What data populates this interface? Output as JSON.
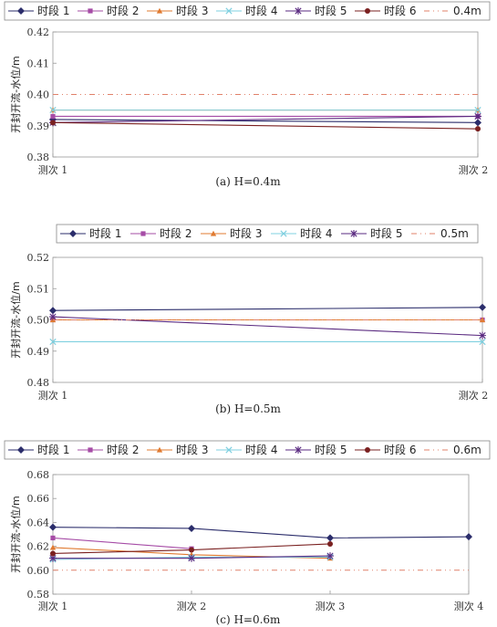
{
  "chart_data": [
    {
      "type": "line",
      "caption": "(a) H=0.4m",
      "ylabel": "开封开流-水位/m",
      "categories": [
        "测次 1",
        "测次 2"
      ],
      "ylim": [
        0.38,
        0.42
      ],
      "yticks": [
        "0.38",
        "0.39",
        "0.40",
        "0.41",
        "0.42"
      ],
      "series": [
        {
          "name": "时段 1",
          "color": "#2b2d6b",
          "marker": "diamond",
          "dash": "",
          "values": [
            0.392,
            0.391
          ]
        },
        {
          "name": "时段 2",
          "color": "#a64ca6",
          "marker": "square",
          "dash": "",
          "values": [
            0.393,
            0.393
          ]
        },
        {
          "name": "时段 3",
          "color": "#e07b32",
          "marker": "triangle",
          "dash": "",
          "values": [
            0.395,
            0.395
          ]
        },
        {
          "name": "时段 4",
          "color": "#7fd0e0",
          "marker": "x",
          "dash": "",
          "values": [
            0.395,
            0.395
          ]
        },
        {
          "name": "时段 5",
          "color": "#5a2a80",
          "marker": "star",
          "dash": "",
          "values": [
            0.391,
            0.393
          ]
        },
        {
          "name": "时段 6",
          "color": "#7a2020",
          "marker": "circle",
          "dash": "",
          "values": [
            0.391,
            0.389
          ]
        },
        {
          "name": "0.4m",
          "color": "#e0806a",
          "marker": "none",
          "dash": "6 4 1 4 1 4",
          "values": [
            0.4,
            0.4
          ]
        }
      ]
    },
    {
      "type": "line",
      "caption": "(b) H=0.5m",
      "ylabel": "开封开流-水位/m",
      "categories": [
        "测次 1",
        "测次 2"
      ],
      "ylim": [
        0.48,
        0.52
      ],
      "yticks": [
        "0.48",
        "0.49",
        "0.50",
        "0.51",
        "0.52"
      ],
      "series": [
        {
          "name": "时段 1",
          "color": "#2b2d6b",
          "marker": "diamond",
          "dash": "",
          "values": [
            0.503,
            0.504
          ]
        },
        {
          "name": "时段 2",
          "color": "#a64ca6",
          "marker": "square",
          "dash": "",
          "values": [
            0.5,
            0.5
          ]
        },
        {
          "name": "时段 3",
          "color": "#e07b32",
          "marker": "triangle",
          "dash": "",
          "values": [
            0.5,
            0.5
          ]
        },
        {
          "name": "时段 4",
          "color": "#7fd0e0",
          "marker": "x",
          "dash": "",
          "values": [
            0.493,
            0.493
          ]
        },
        {
          "name": "时段 5",
          "color": "#5a2a80",
          "marker": "star",
          "dash": "",
          "values": [
            0.501,
            0.495
          ]
        },
        {
          "name": "0.5m",
          "color": "#e0806a",
          "marker": "none",
          "dash": "6 4 1 4 1 4",
          "values": [
            0.5,
            0.5
          ]
        }
      ]
    },
    {
      "type": "line",
      "caption": "(c) H=0.6m",
      "ylabel": "开封开流-水位/m",
      "categories": [
        "测次 1",
        "测次 2",
        "测次 3",
        "测次 4"
      ],
      "ylim": [
        0.58,
        0.68
      ],
      "yticks": [
        "0.58",
        "0.60",
        "0.62",
        "0.64",
        "0.66",
        "0.68"
      ],
      "series": [
        {
          "name": "时段 1",
          "color": "#2b2d6b",
          "marker": "diamond",
          "dash": "",
          "values": [
            0.636,
            0.635,
            0.627,
            0.628
          ]
        },
        {
          "name": "时段 2",
          "color": "#a64ca6",
          "marker": "square",
          "dash": "",
          "values": [
            0.627,
            0.618,
            null,
            null
          ]
        },
        {
          "name": "时段 3",
          "color": "#e07b32",
          "marker": "triangle",
          "dash": "",
          "values": [
            0.619,
            0.613,
            0.61,
            null
          ]
        },
        {
          "name": "时段 4",
          "color": "#7fd0e0",
          "marker": "x",
          "dash": "",
          "values": [
            0.609,
            0.611,
            0.611,
            null
          ]
        },
        {
          "name": "时段 5",
          "color": "#5a2a80",
          "marker": "star",
          "dash": "",
          "values": [
            0.61,
            0.61,
            0.612,
            null
          ]
        },
        {
          "name": "时段 6",
          "color": "#7a2020",
          "marker": "circle",
          "dash": "",
          "values": [
            0.614,
            0.617,
            0.622,
            null
          ]
        },
        {
          "name": "0.6m",
          "color": "#e0806a",
          "marker": "none",
          "dash": "6 4 1 4 1 4",
          "values": [
            0.6,
            0.6,
            0.6,
            0.6
          ]
        }
      ]
    }
  ]
}
